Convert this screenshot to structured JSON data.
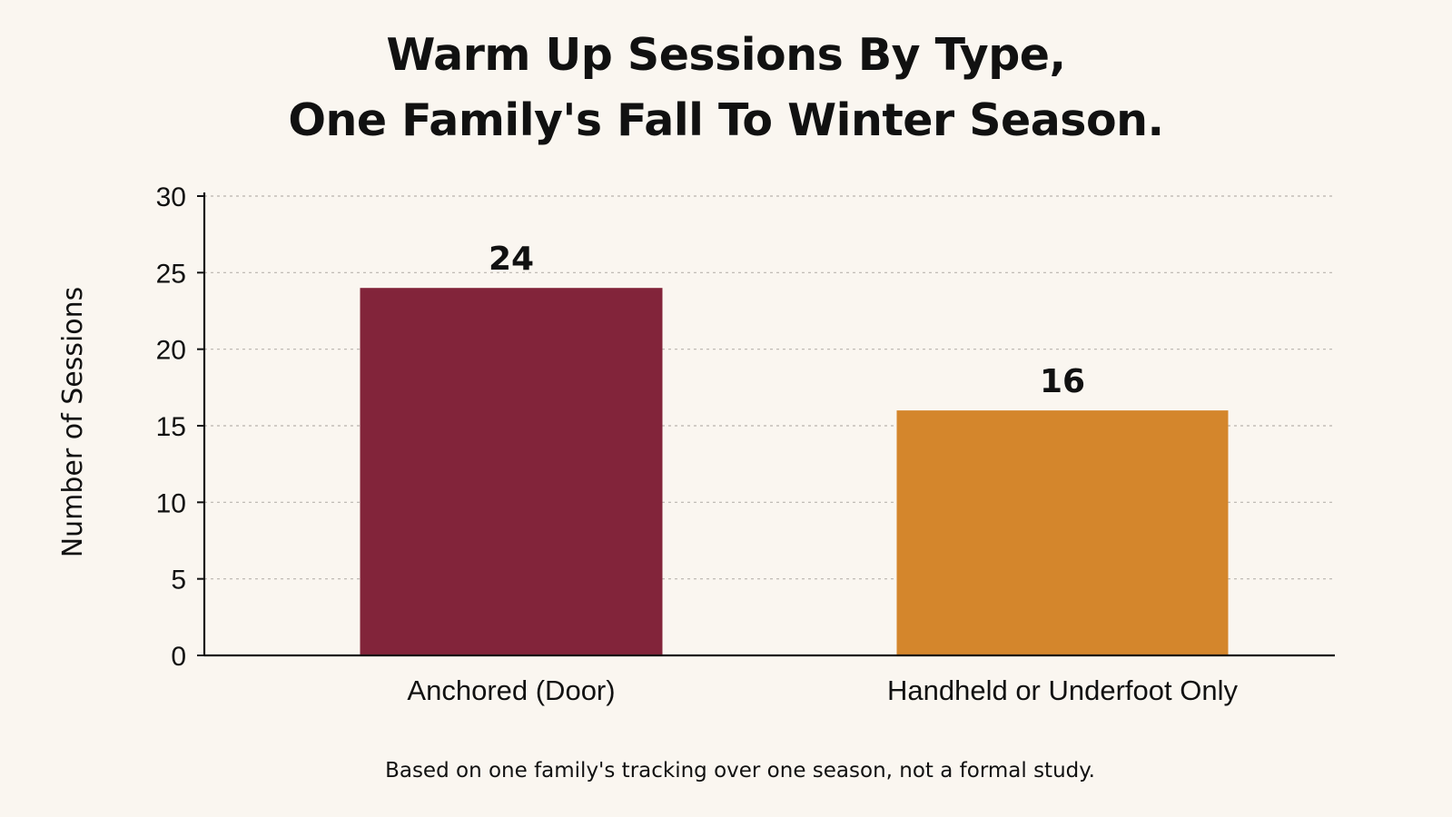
{
  "chart_data": {
    "type": "bar",
    "title": [
      "Warm Up Sessions By Type,",
      "One Family's Fall To Winter Season."
    ],
    "ylabel": "Number of Sessions",
    "xlabel": "",
    "ylim": [
      0,
      30
    ],
    "yticks": [
      0,
      5,
      10,
      15,
      20,
      25,
      30
    ],
    "grid": true,
    "categories": [
      "Anchored (Door)",
      "Handheld or Underfoot Only"
    ],
    "values": [
      24,
      16
    ],
    "value_labels": [
      "24",
      "16"
    ],
    "colors": [
      "#82243a",
      "#d4862c"
    ],
    "footnote": "Based on one family's tracking over one season, not a formal study."
  }
}
